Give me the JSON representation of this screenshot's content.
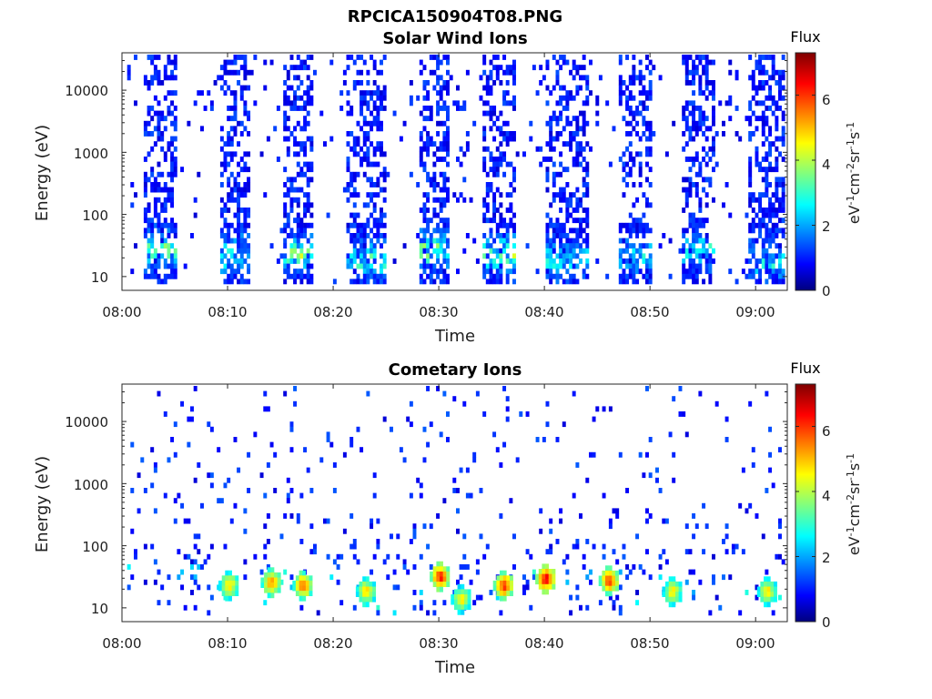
{
  "figure_title": "RPCICA150904T08.PNG",
  "chart_data": [
    {
      "type": "heatmap",
      "title": "Solar Wind Ions",
      "xlabel": "Time",
      "ylabel": "Energy (eV)",
      "y_scale": "log",
      "ylim": [
        6,
        40000
      ],
      "xlim": [
        "08:00",
        "09:03"
      ],
      "x_ticks": [
        "08:00",
        "08:10",
        "08:20",
        "08:30",
        "08:40",
        "08:50",
        "09:00"
      ],
      "y_ticks": [
        "10",
        "100",
        "1000",
        "10000"
      ],
      "colorbar": {
        "title": "Flux",
        "label": "eV-1cm-2sr-1s-1",
        "min": 0,
        "max": 7.3,
        "ticks": [
          "0",
          "2",
          "4",
          "6"
        ],
        "colormap": "jet"
      },
      "bursts": [
        {
          "start": "08:02",
          "end": "08:05",
          "peak_flux": 4.4,
          "peak_energy_ev": 30
        },
        {
          "start": "08:09",
          "end": "08:12",
          "peak_flux": 4.0,
          "peak_energy_ev": 25
        },
        {
          "start": "08:15",
          "end": "08:18",
          "peak_flux": 4.6,
          "peak_energy_ev": 25
        },
        {
          "start": "08:21",
          "end": "08:25",
          "peak_flux": 4.0,
          "peak_energy_ev": 20
        },
        {
          "start": "08:28",
          "end": "08:31",
          "peak_flux": 4.8,
          "peak_energy_ev": 30
        },
        {
          "start": "08:34",
          "end": "08:37",
          "peak_flux": 4.5,
          "peak_energy_ev": 25
        },
        {
          "start": "08:40",
          "end": "08:44",
          "peak_flux": 3.5,
          "peak_energy_ev": 20
        },
        {
          "start": "08:47",
          "end": "08:50",
          "peak_flux": 3.3,
          "peak_energy_ev": 25
        },
        {
          "start": "08:53",
          "end": "08:56",
          "peak_flux": 3.8,
          "peak_energy_ev": 30
        },
        {
          "start": "08:59",
          "end": "09:03",
          "peak_flux": 3.5,
          "peak_energy_ev": 20
        }
      ]
    },
    {
      "type": "heatmap",
      "title": "Cometary Ions",
      "xlabel": "Time",
      "ylabel": "Energy (eV)",
      "y_scale": "log",
      "ylim": [
        6,
        40000
      ],
      "xlim": [
        "08:00",
        "09:03"
      ],
      "x_ticks": [
        "08:00",
        "08:10",
        "08:20",
        "08:30",
        "08:40",
        "08:50",
        "09:00"
      ],
      "y_ticks": [
        "10",
        "100",
        "1000",
        "10000"
      ],
      "colorbar": {
        "title": "Flux",
        "label": "eV-1cm-2sr-1s-1",
        "min": 0,
        "max": 7.3,
        "ticks": [
          "0",
          "2",
          "4",
          "6"
        ],
        "colormap": "jet"
      },
      "blobs": [
        {
          "time": "08:10",
          "peak_flux": 5.2,
          "energy_ev": 25
        },
        {
          "time": "08:14",
          "peak_flux": 5.8,
          "energy_ev": 28
        },
        {
          "time": "08:17",
          "peak_flux": 6.0,
          "energy_ev": 25
        },
        {
          "time": "08:23",
          "peak_flux": 5.2,
          "energy_ev": 20
        },
        {
          "time": "08:30",
          "peak_flux": 6.6,
          "energy_ev": 35
        },
        {
          "time": "08:32",
          "peak_flux": 5.0,
          "energy_ev": 15
        },
        {
          "time": "08:36",
          "peak_flux": 6.5,
          "energy_ev": 25
        },
        {
          "time": "08:40",
          "peak_flux": 6.8,
          "energy_ev": 32
        },
        {
          "time": "08:46",
          "peak_flux": 6.4,
          "energy_ev": 30
        },
        {
          "time": "08:52",
          "peak_flux": 5.0,
          "energy_ev": 20
        },
        {
          "time": "09:01",
          "peak_flux": 5.0,
          "energy_ev": 20
        }
      ]
    }
  ]
}
